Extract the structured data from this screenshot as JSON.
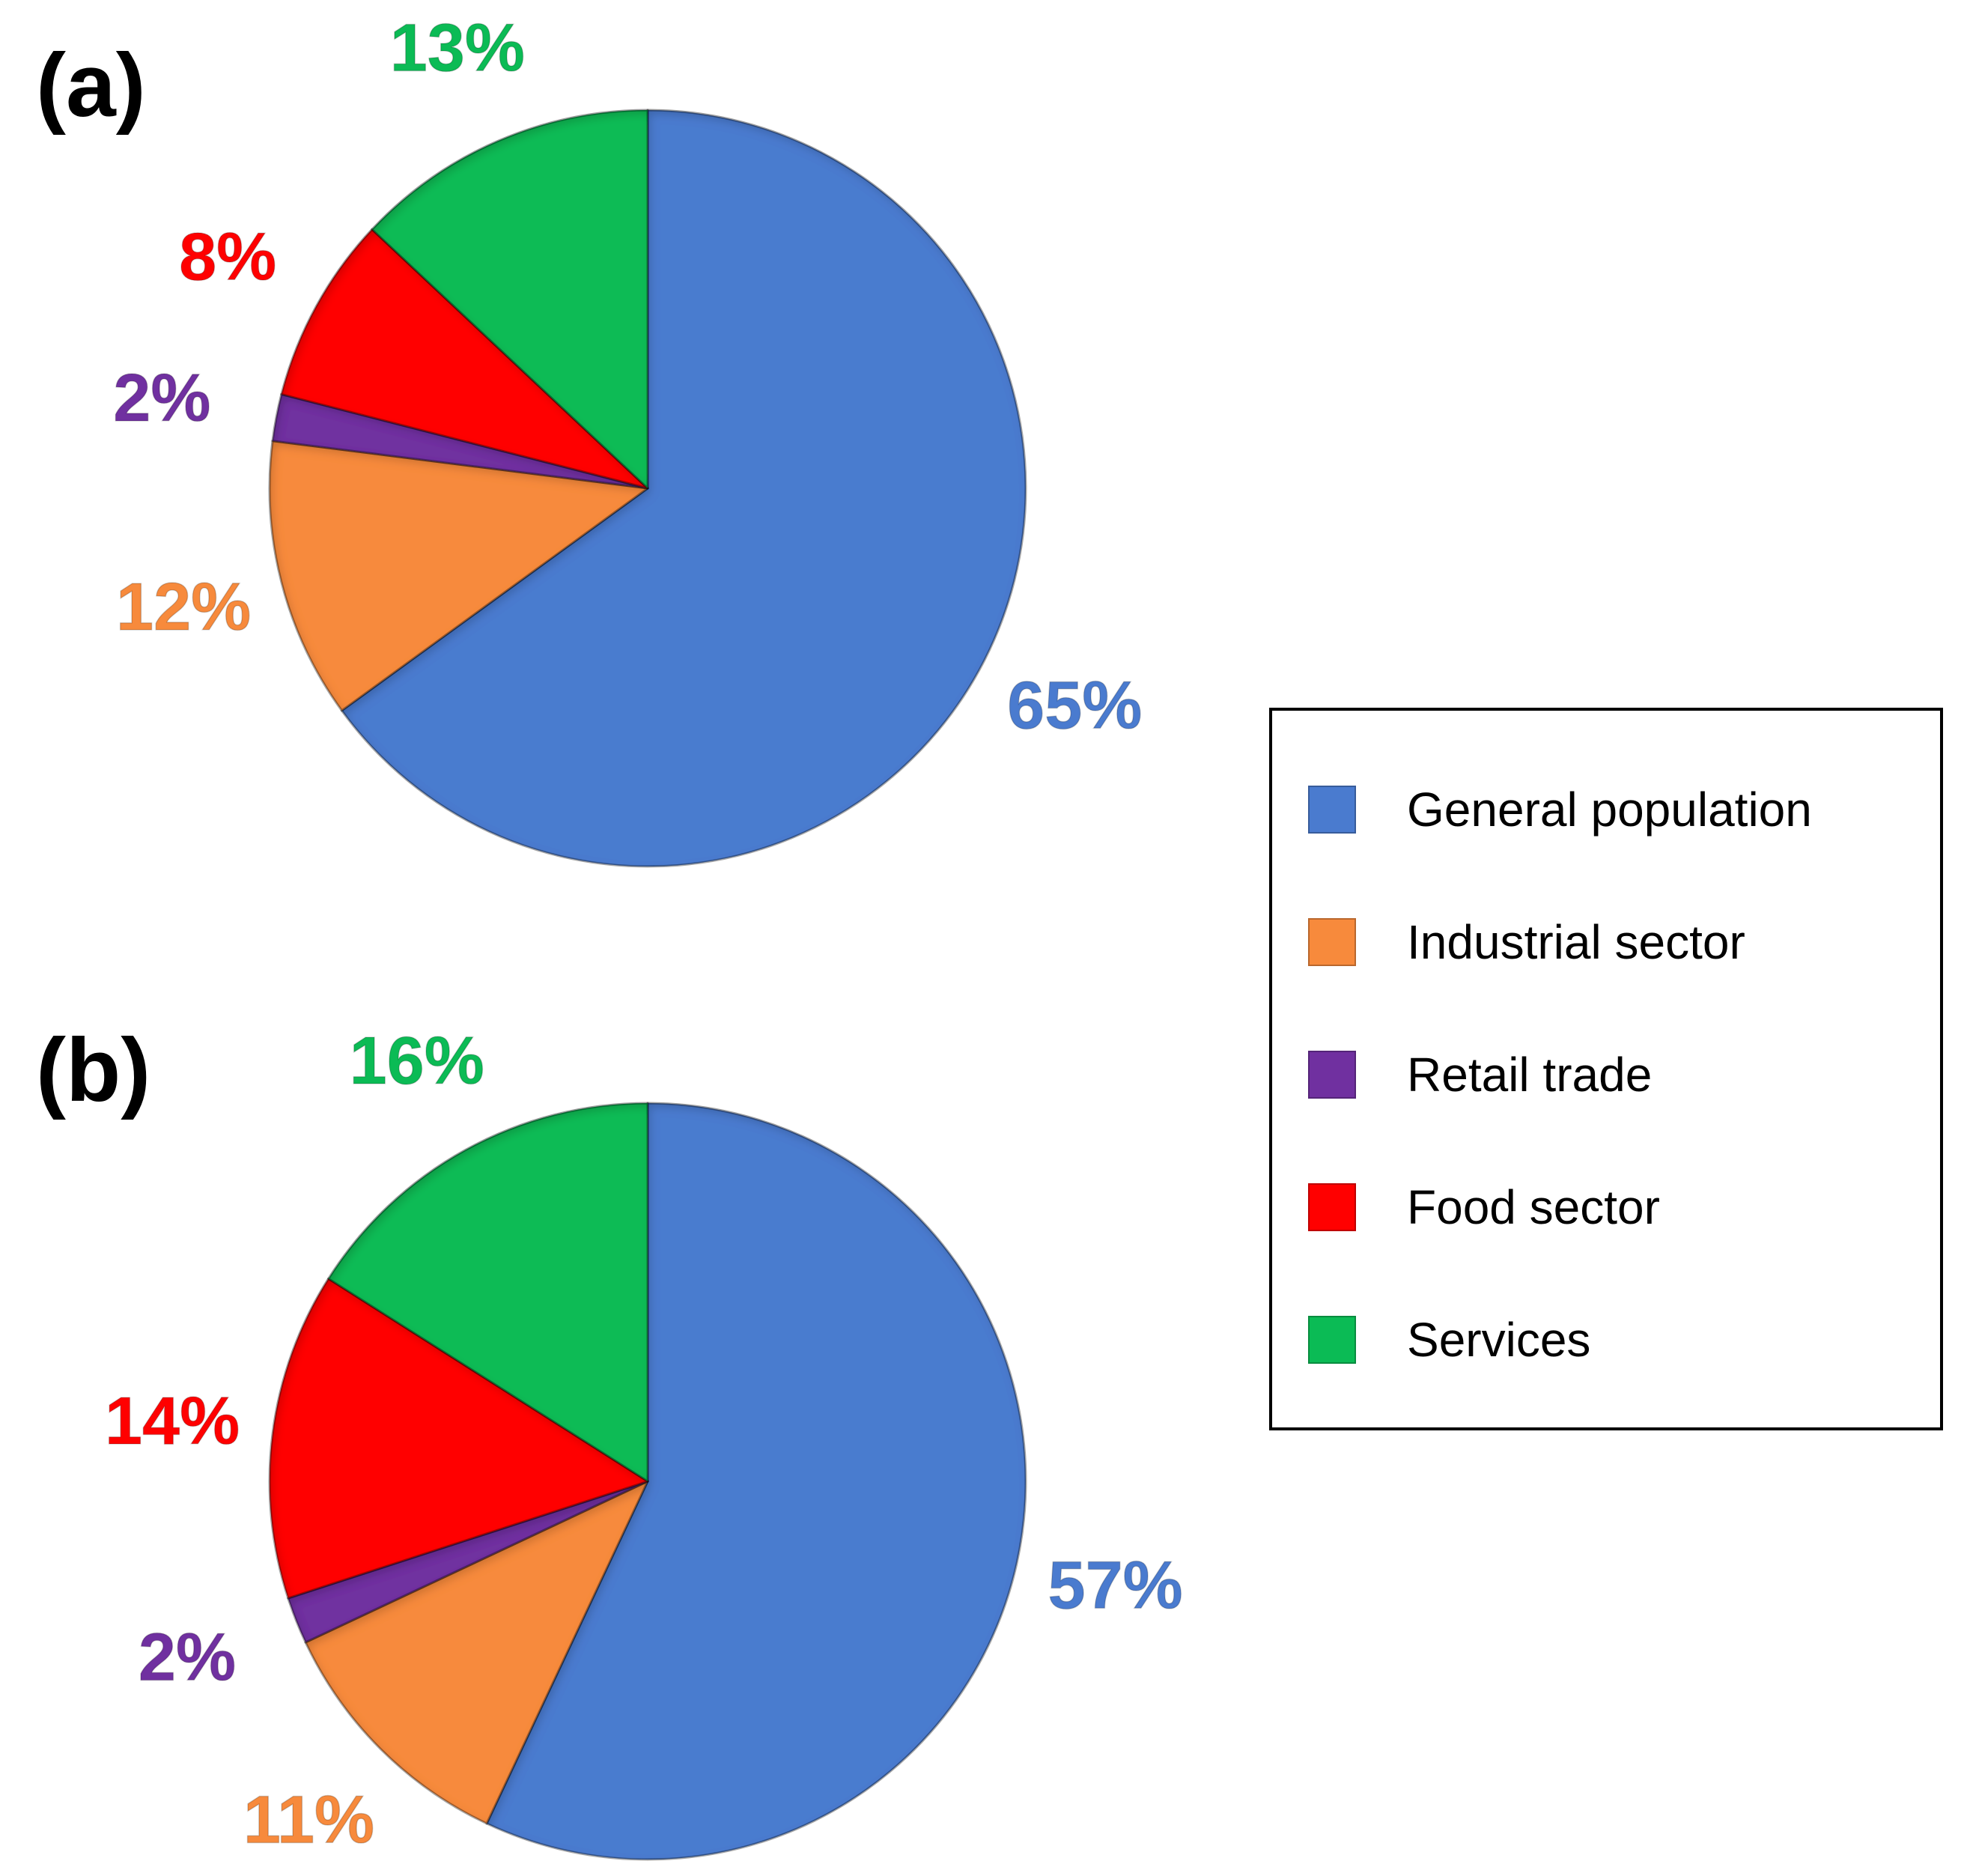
{
  "colors": {
    "general_population": "#4a7bcf",
    "industrial_sector": "#f78a3c",
    "retail_trade": "#7030a0",
    "food_sector": "#ff0000",
    "services": "#0bbb55"
  },
  "chart_data": [
    {
      "type": "pie",
      "panel": "(a)",
      "categories": [
        "General population",
        "Industrial sector",
        "Retail trade",
        "Food sector",
        "Services"
      ],
      "values": [
        65,
        12,
        2,
        8,
        13
      ],
      "labels": [
        "65%",
        "12%",
        "2%",
        "8%",
        "13%"
      ],
      "label_colors": [
        "#4a7bcf",
        "#f78a3c",
        "#7030a0",
        "#ff0000",
        "#0bbb55"
      ]
    },
    {
      "type": "pie",
      "panel": "(b)",
      "categories": [
        "General population",
        "Industrial sector",
        "Retail trade",
        "Food sector",
        "Services"
      ],
      "values": [
        57,
        11,
        2,
        14,
        16
      ],
      "labels": [
        "57%",
        "11%",
        "2%",
        "14%",
        "16%"
      ],
      "label_colors": [
        "#4a7bcf",
        "#f78a3c",
        "#7030a0",
        "#ff0000",
        "#0bbb55"
      ]
    }
  ],
  "legend": {
    "placement": "right",
    "items": [
      {
        "label": "General population",
        "color": "#4a7bcf"
      },
      {
        "label": "Industrial sector",
        "color": "#f78a3c"
      },
      {
        "label": "Retail trade",
        "color": "#7030a0"
      },
      {
        "label": "Food sector",
        "color": "#ff0000"
      },
      {
        "label": "Services",
        "color": "#0bbb55"
      }
    ]
  }
}
